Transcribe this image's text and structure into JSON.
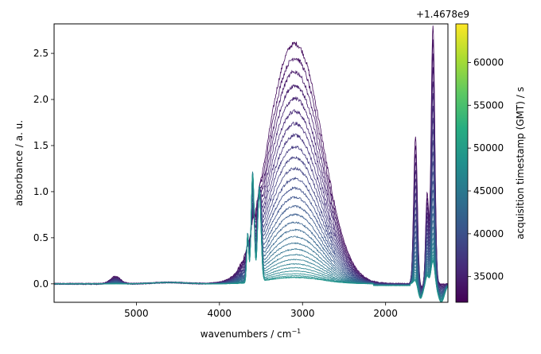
{
  "chart_data": {
    "type": "line",
    "title": "",
    "xlabel": "wavenumbers / cm",
    "xlabel_superscript": "−1",
    "ylabel": "absorbance / a. u.",
    "xlim": [
      5990,
      1250
    ],
    "ylim": [
      -0.2,
      2.82
    ],
    "x_ticks": [
      5000,
      4000,
      3000,
      2000
    ],
    "x_tick_labels": [
      "5000",
      "4000",
      "3000",
      "2000"
    ],
    "y_ticks": [
      0.0,
      0.5,
      1.0,
      1.5,
      2.0,
      2.5
    ],
    "y_tick_labels": [
      "0.0",
      "0.5",
      "1.0",
      "1.5",
      "2.0",
      "2.5"
    ],
    "grid": false,
    "legend": "none",
    "colorbar": {
      "label": "acquisition timestamp (GMT) / s",
      "offset_text": "+1.4678e9",
      "range": [
        32000,
        64500
      ],
      "ticks": [
        35000,
        40000,
        45000,
        50000,
        55000,
        60000
      ],
      "tick_labels": [
        "35000",
        "40000",
        "45000",
        "50000",
        "55000",
        "60000"
      ],
      "colormap": [
        "#440154",
        "#472c7a",
        "#3b528b",
        "#2c728e",
        "#21908d",
        "#27ad81",
        "#5cc863",
        "#aadc32",
        "#fde725"
      ]
    },
    "series_count": 30,
    "series_time_range": [
      33000,
      49000
    ],
    "series_features": {
      "oh_band_peak_3000": [
        2.7,
        0.07
      ],
      "band_3600_peak": [
        0.1,
        1.3
      ],
      "band_1640_peak": [
        1.6,
        0.05
      ],
      "band_1420_peak": [
        2.8,
        0.25
      ],
      "baseline": 0.0
    }
  }
}
